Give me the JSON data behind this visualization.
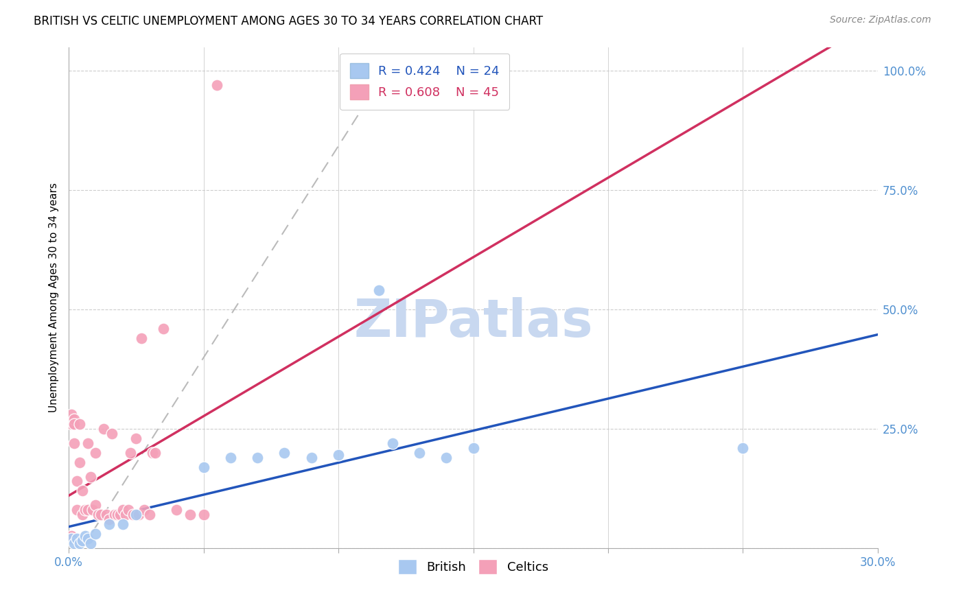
{
  "title": "BRITISH VS CELTIC UNEMPLOYMENT AMONG AGES 30 TO 34 YEARS CORRELATION CHART",
  "source": "Source: ZipAtlas.com",
  "ylabel": "Unemployment Among Ages 30 to 34 years",
  "xlim": [
    0.0,
    0.3
  ],
  "ylim": [
    0.0,
    1.05
  ],
  "xticks": [
    0.0,
    0.05,
    0.1,
    0.15,
    0.2,
    0.25,
    0.3
  ],
  "xtick_labels": [
    "0.0%",
    "",
    "",
    "",
    "",
    "",
    "30.0%"
  ],
  "yticks": [
    0.0,
    0.25,
    0.5,
    0.75,
    1.0
  ],
  "ytick_labels": [
    "",
    "25.0%",
    "50.0%",
    "75.0%",
    "100.0%"
  ],
  "british_R": 0.424,
  "british_N": 24,
  "celtic_R": 0.608,
  "celtic_N": 45,
  "british_color": "#A8C8F0",
  "celtic_color": "#F4A0B8",
  "british_line_color": "#2255BB",
  "celtic_line_color": "#D03060",
  "grid_color": "#CCCCCC",
  "watermark": "ZIPatlas",
  "watermark_color": "#C8D8F0",
  "british_x": [
    0.001,
    0.002,
    0.003,
    0.004,
    0.005,
    0.006,
    0.007,
    0.008,
    0.01,
    0.015,
    0.02,
    0.025,
    0.05,
    0.06,
    0.07,
    0.08,
    0.09,
    0.1,
    0.115,
    0.12,
    0.13,
    0.14,
    0.15,
    0.25
  ],
  "british_y": [
    0.02,
    0.01,
    0.02,
    0.01,
    0.015,
    0.025,
    0.02,
    0.01,
    0.03,
    0.05,
    0.05,
    0.07,
    0.17,
    0.19,
    0.19,
    0.2,
    0.19,
    0.195,
    0.54,
    0.22,
    0.2,
    0.19,
    0.21,
    0.21
  ],
  "celtic_x": [
    0.001,
    0.001,
    0.001,
    0.002,
    0.002,
    0.002,
    0.003,
    0.003,
    0.004,
    0.004,
    0.005,
    0.005,
    0.006,
    0.007,
    0.007,
    0.008,
    0.009,
    0.01,
    0.01,
    0.011,
    0.012,
    0.013,
    0.014,
    0.015,
    0.016,
    0.017,
    0.018,
    0.019,
    0.02,
    0.021,
    0.022,
    0.023,
    0.024,
    0.025,
    0.026,
    0.027,
    0.028,
    0.03,
    0.031,
    0.032,
    0.035,
    0.04,
    0.045,
    0.05,
    0.055
  ],
  "celtic_y": [
    0.025,
    0.26,
    0.28,
    0.27,
    0.22,
    0.26,
    0.14,
    0.08,
    0.26,
    0.18,
    0.07,
    0.12,
    0.08,
    0.22,
    0.08,
    0.15,
    0.08,
    0.09,
    0.2,
    0.07,
    0.07,
    0.25,
    0.07,
    0.06,
    0.24,
    0.07,
    0.07,
    0.07,
    0.08,
    0.07,
    0.08,
    0.2,
    0.07,
    0.23,
    0.07,
    0.44,
    0.08,
    0.07,
    0.2,
    0.2,
    0.46,
    0.08,
    0.07,
    0.07,
    0.97
  ],
  "tick_color": "#5090D0",
  "title_fontsize": 12,
  "label_fontsize": 11,
  "legend_fontsize": 13
}
